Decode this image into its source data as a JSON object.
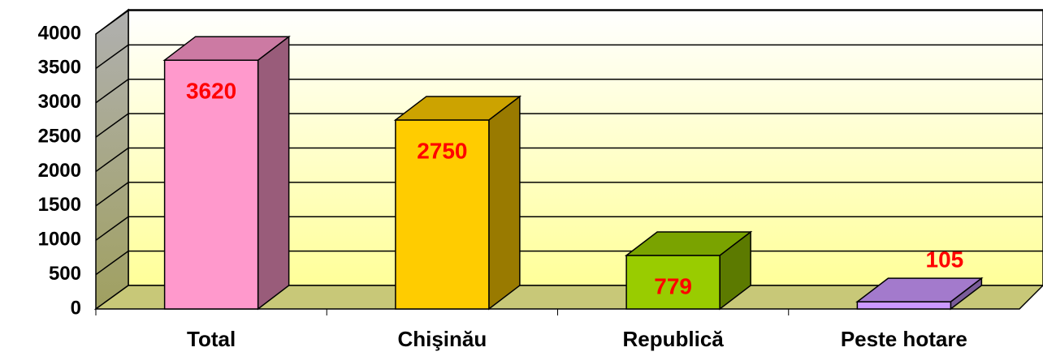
{
  "chart_data": {
    "type": "bar3d",
    "categories": [
      "Total",
      "Chişinău",
      "Republică",
      "Peste hotare"
    ],
    "values": [
      3620,
      2750,
      779,
      105
    ],
    "colors": [
      "#ff99cc",
      "#ffcc00",
      "#99cc00",
      "#cc99ff"
    ],
    "ylim": [
      0,
      4000
    ],
    "yticks": [
      0,
      500,
      1000,
      1500,
      2000,
      2500,
      3000,
      3500,
      4000
    ],
    "grid": true
  }
}
